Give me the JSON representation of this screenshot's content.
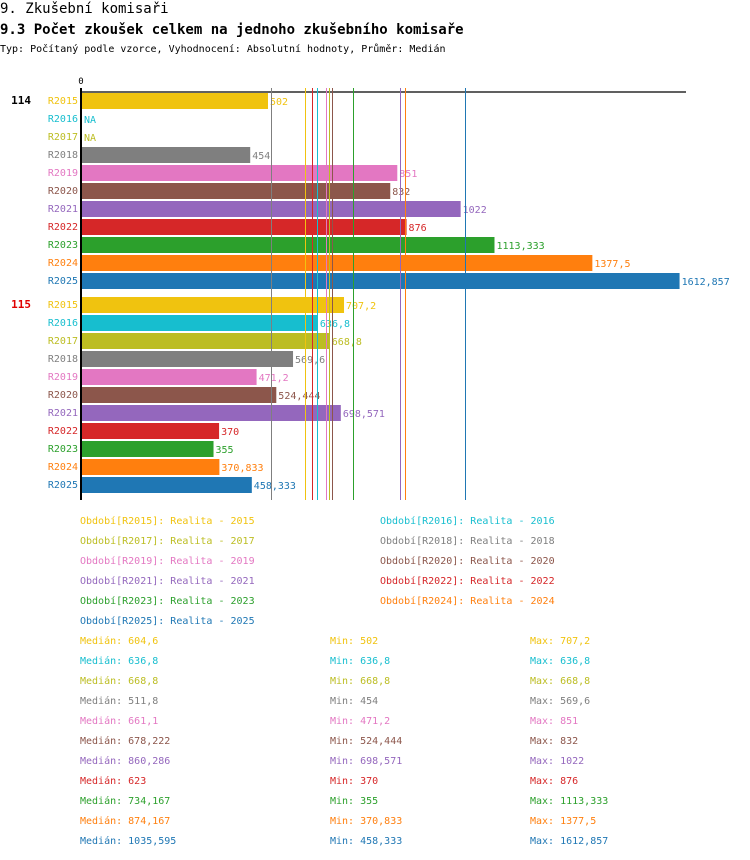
{
  "header": {
    "title": "9. Zkušební komisaři",
    "subtitle": "9.3 Počet zkoušek celkem na jednoho zkušebního komisaře",
    "description": "Typ: Počítaný podle vzorce, Vyhodnocení: Absolutní hodnoty, Průměr: Medián"
  },
  "chart_data": {
    "type": "bar",
    "orientation": "horizontal",
    "title": "9.3 Počet zkoušek celkem na jednoho zkušebního komisaře",
    "x_axis": {
      "tick_labels": [
        "0"
      ],
      "min": 0,
      "max": 1650
    },
    "groups": [
      {
        "label": "114",
        "label_color": "#000000",
        "bars": [
          {
            "series": "R2015",
            "value": 502,
            "label": "502"
          },
          {
            "series": "R2016",
            "value": null,
            "label": "NA"
          },
          {
            "series": "R2017",
            "value": null,
            "label": "NA"
          },
          {
            "series": "R2018",
            "value": 454,
            "label": "454"
          },
          {
            "series": "R2019",
            "value": 851,
            "label": "851"
          },
          {
            "series": "R2020",
            "value": 832,
            "label": "832"
          },
          {
            "series": "R2021",
            "value": 1022,
            "label": "1022"
          },
          {
            "series": "R2022",
            "value": 876,
            "label": "876"
          },
          {
            "series": "R2023",
            "value": 1113.333,
            "label": "1113,333"
          },
          {
            "series": "R2024",
            "value": 1377.5,
            "label": "1377,5"
          },
          {
            "series": "R2025",
            "value": 1612.857,
            "label": "1612,857"
          }
        ]
      },
      {
        "label": "115",
        "label_color": "#e00000",
        "bars": [
          {
            "series": "R2015",
            "value": 707.2,
            "label": "707,2"
          },
          {
            "series": "R2016",
            "value": 636.8,
            "label": "636,8"
          },
          {
            "series": "R2017",
            "value": 668.8,
            "label": "668,8"
          },
          {
            "series": "R2018",
            "value": 569.6,
            "label": "569,6"
          },
          {
            "series": "R2019",
            "value": 471.2,
            "label": "471,2"
          },
          {
            "series": "R2020",
            "value": 524.444,
            "label": "524,444"
          },
          {
            "series": "R2021",
            "value": 698.571,
            "label": "698,571"
          },
          {
            "series": "R2022",
            "value": 370,
            "label": "370"
          },
          {
            "series": "R2023",
            "value": 355,
            "label": "355"
          },
          {
            "series": "R2024",
            "value": 370.833,
            "label": "370,833"
          },
          {
            "series": "R2025",
            "value": 458.333,
            "label": "458,333"
          }
        ]
      }
    ],
    "series": [
      {
        "name": "R2015",
        "color": "#f0c30f",
        "legend": "Období[R2015]: Realita - 2015",
        "median": 604.6,
        "median_label": "Medián: 604,6",
        "min_label": "Min: 502",
        "max_label": "Max: 707,2"
      },
      {
        "name": "R2016",
        "color": "#17becf",
        "legend": "Období[R2016]: Realita - 2016",
        "median": 636.8,
        "median_label": "Medián: 636,8",
        "min_label": "Min: 636,8",
        "max_label": "Max: 636,8"
      },
      {
        "name": "R2017",
        "color": "#bcbd22",
        "legend": "Období[R2017]: Realita - 2017",
        "median": 668.8,
        "median_label": "Medián: 668,8",
        "min_label": "Min: 668,8",
        "max_label": "Max: 668,8"
      },
      {
        "name": "R2018",
        "color": "#7f7f7f",
        "legend": "Období[R2018]: Realita - 2018",
        "median": 511.8,
        "median_label": "Medián: 511,8",
        "min_label": "Min: 454",
        "max_label": "Max: 569,6"
      },
      {
        "name": "R2019",
        "color": "#e377c2",
        "legend": "Období[R2019]: Realita - 2019",
        "median": 661.1,
        "median_label": "Medián: 661,1",
        "min_label": "Min: 471,2",
        "max_label": "Max: 851"
      },
      {
        "name": "R2020",
        "color": "#8c564b",
        "legend": "Období[R2020]: Realita - 2020",
        "median": 678.222,
        "median_label": "Medián: 678,222",
        "min_label": "Min: 524,444",
        "max_label": "Max: 832"
      },
      {
        "name": "R2021",
        "color": "#9467bd",
        "legend": "Období[R2021]: Realita - 2021",
        "median": 860.286,
        "median_label": "Medián: 860,286",
        "min_label": "Min: 698,571",
        "max_label": "Max: 1022"
      },
      {
        "name": "R2022",
        "color": "#d62728",
        "legend": "Období[R2022]: Realita - 2022",
        "median": 623,
        "median_label": "Medián: 623",
        "min_label": "Min: 370",
        "max_label": "Max: 876"
      },
      {
        "name": "R2023",
        "color": "#2ca02c",
        "legend": "Období[R2023]: Realita - 2023",
        "median": 734.167,
        "median_label": "Medián: 734,167",
        "min_label": "Min: 355",
        "max_label": "Max: 1113,333"
      },
      {
        "name": "R2024",
        "color": "#ff7f0e",
        "legend": "Období[R2024]: Realita - 2024",
        "median": 874.167,
        "median_label": "Medián: 874,167",
        "min_label": "Min: 370,833",
        "max_label": "Max: 1377,5"
      },
      {
        "name": "R2025",
        "color": "#1f77b4",
        "legend": "Období[R2025]: Realita - 2025",
        "median": 1035.595,
        "median_label": "Medián: 1035,595",
        "min_label": "Min: 458,333",
        "max_label": "Max: 1612,857"
      }
    ]
  }
}
